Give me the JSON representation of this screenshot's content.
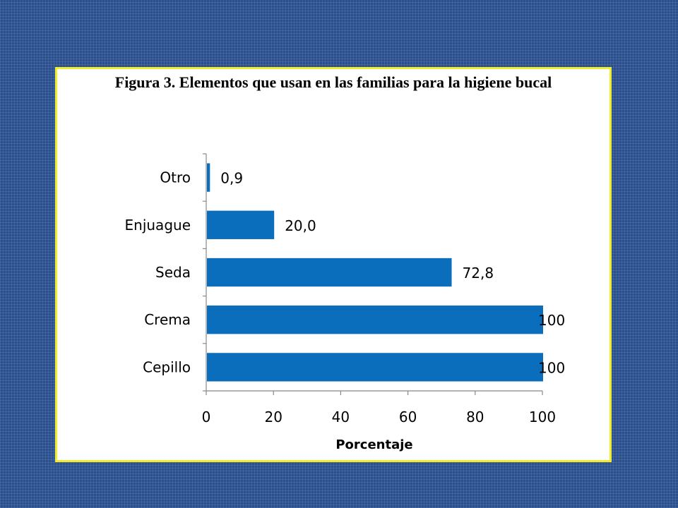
{
  "chart_data": {
    "type": "bar",
    "orientation": "horizontal",
    "title": "Figura 3. Elementos que usan en las familias para la higiene bucal",
    "xlabel": "Porcentaje",
    "ylabel": "",
    "categories": [
      "Cepillo",
      "Crema",
      "Seda",
      "Enjuague",
      "Otro"
    ],
    "values": [
      100,
      100,
      72.8,
      20.0,
      0.9
    ],
    "value_labels": [
      "100",
      "100",
      "72,8",
      "20,0",
      "0,9"
    ],
    "xlim": [
      0,
      100
    ],
    "xticks": [
      0,
      20,
      40,
      60,
      80,
      100
    ],
    "grid": false,
    "bar_color": "#0a6ebd",
    "frame_border_color": "#f2ec2a"
  }
}
